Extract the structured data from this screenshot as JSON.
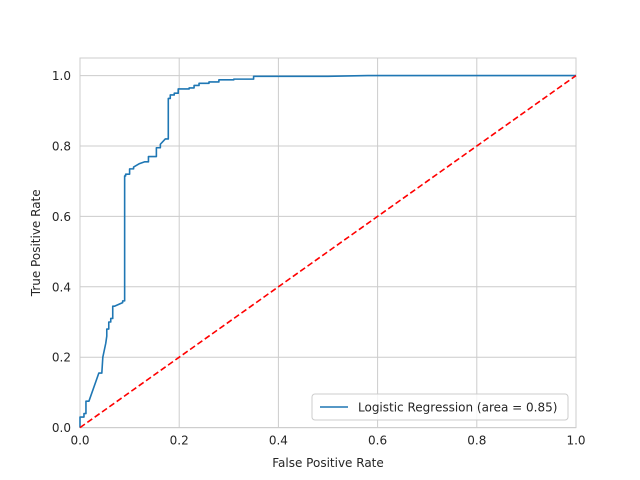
{
  "chart_data": {
    "type": "line",
    "title": "",
    "xlabel": "False Positive Rate",
    "ylabel": "True Positive Rate",
    "xlim": [
      0,
      1
    ],
    "ylim": [
      0,
      1.05
    ],
    "grid": true,
    "legend_position": "lower-right",
    "x_ticks": [
      "0.0",
      "0.2",
      "0.4",
      "0.6",
      "0.8",
      "1.0"
    ],
    "y_ticks": [
      "0.0",
      "0.2",
      "0.4",
      "0.6",
      "0.8",
      "1.0"
    ],
    "series": [
      {
        "name": "Logistic Regression (area = 0.85)",
        "color": "#1f77b4",
        "style": "solid",
        "x": [
          0.0,
          0.0,
          0.008,
          0.008,
          0.012,
          0.012,
          0.018,
          0.038,
          0.04,
          0.044,
          0.046,
          0.052,
          0.054,
          0.054,
          0.058,
          0.058,
          0.062,
          0.062,
          0.066,
          0.066,
          0.07,
          0.07,
          0.086,
          0.086,
          0.09,
          0.09,
          0.092,
          0.092,
          0.1,
          0.1,
          0.108,
          0.108,
          0.12,
          0.13,
          0.138,
          0.138,
          0.154,
          0.154,
          0.162,
          0.162,
          0.172,
          0.178,
          0.178,
          0.182,
          0.182,
          0.19,
          0.19,
          0.198,
          0.198,
          0.22,
          0.22,
          0.23,
          0.23,
          0.24,
          0.24,
          0.26,
          0.26,
          0.28,
          0.28,
          0.31,
          0.31,
          0.35,
          0.35,
          0.5,
          0.58,
          1.0
        ],
        "y": [
          0.0,
          0.03,
          0.03,
          0.04,
          0.04,
          0.075,
          0.075,
          0.155,
          0.155,
          0.155,
          0.2,
          0.24,
          0.26,
          0.28,
          0.28,
          0.3,
          0.3,
          0.31,
          0.31,
          0.345,
          0.345,
          0.345,
          0.355,
          0.36,
          0.36,
          0.715,
          0.715,
          0.72,
          0.72,
          0.735,
          0.735,
          0.74,
          0.75,
          0.755,
          0.755,
          0.77,
          0.77,
          0.795,
          0.795,
          0.805,
          0.82,
          0.82,
          0.935,
          0.935,
          0.945,
          0.945,
          0.95,
          0.95,
          0.962,
          0.962,
          0.965,
          0.965,
          0.972,
          0.972,
          0.978,
          0.978,
          0.982,
          0.982,
          0.988,
          0.988,
          0.99,
          0.99,
          0.998,
          0.998,
          1.0,
          1.0
        ]
      },
      {
        "name": "",
        "color": "#ff0000",
        "style": "dashed",
        "x": [
          0,
          1
        ],
        "y": [
          0,
          1
        ]
      }
    ]
  }
}
